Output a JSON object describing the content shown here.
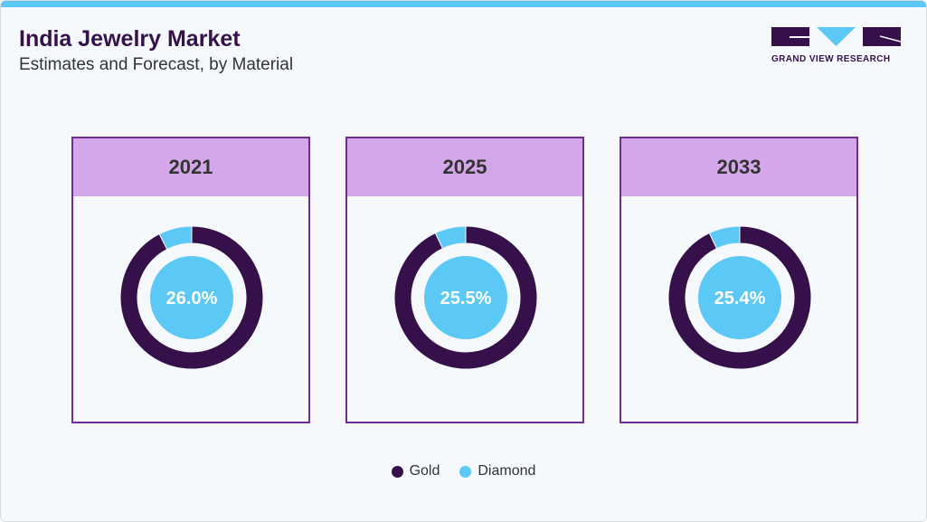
{
  "header": {
    "title": "India Jewelry Market",
    "subtitle": "Estimates and Forecast, by Material",
    "logo_text": "GRAND VIEW RESEARCH"
  },
  "colors": {
    "gold": "#36104a",
    "diamond": "#5bc8f5",
    "panel_header": "#d4a6ea",
    "panel_border": "#6f2c91"
  },
  "chart_data": {
    "type": "pie",
    "variant": "donut",
    "series_names": [
      "Gold",
      "Diamond"
    ],
    "panels": [
      {
        "year": "2021",
        "center_label": "26.0%",
        "values": {
          "Gold": 92.5,
          "Diamond": 7.5
        }
      },
      {
        "year": "2025",
        "center_label": "25.5%",
        "values": {
          "Gold": 93,
          "Diamond": 7
        }
      },
      {
        "year": "2033",
        "center_label": "25.4%",
        "values": {
          "Gold": 93,
          "Diamond": 7
        }
      }
    ],
    "legend": {
      "placement": "bottom",
      "items": [
        {
          "label": "Gold",
          "color": "#36104a"
        },
        {
          "label": "Diamond",
          "color": "#5bc8f5"
        }
      ]
    }
  }
}
